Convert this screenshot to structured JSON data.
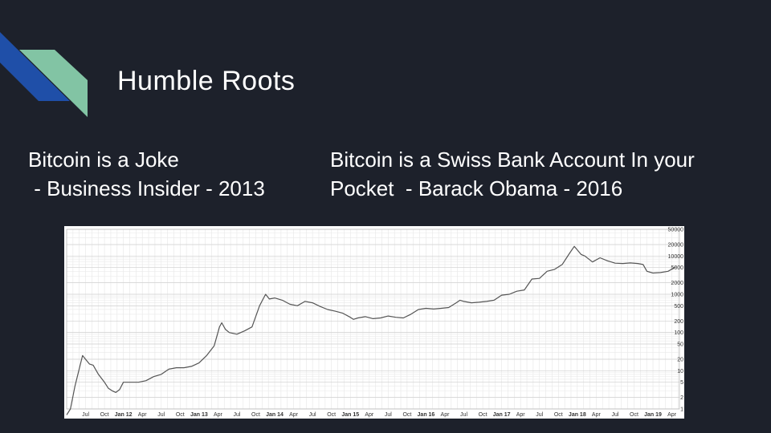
{
  "slide": {
    "title": "Humble Roots",
    "quote_left": "Bitcoin is a Joke\n - Business Insider - 2013",
    "quote_right": "Bitcoin is a Swiss Bank Account In your\nPocket  - Barack Obama - 2016"
  },
  "colors": {
    "background": "#1d212b",
    "accent_blue": "#1f4fa8",
    "accent_green": "#82c4a4",
    "text": "#ffffff",
    "line": "#555555"
  },
  "chart_data": {
    "type": "line",
    "y_scale": "log",
    "ylim": [
      1,
      50000
    ],
    "y_ticks": [
      1,
      2,
      5,
      10,
      20,
      50,
      100,
      200,
      500,
      1000,
      2000,
      5000,
      10000,
      20000,
      50000
    ],
    "y_tick_labels": [
      "1",
      "2",
      "5",
      "10",
      "20",
      "50",
      "100",
      "200",
      "500",
      "1000",
      "2000",
      "5000",
      "10000",
      "20000",
      "50000"
    ],
    "x_range": [
      2011.25,
      2019.35
    ],
    "x_ticks": [
      {
        "x": 2011.5,
        "label": "Jul",
        "bold": false
      },
      {
        "x": 2011.75,
        "label": "Oct",
        "bold": false
      },
      {
        "x": 2012.0,
        "label": "Jan 12",
        "bold": true
      },
      {
        "x": 2012.25,
        "label": "Apr",
        "bold": false
      },
      {
        "x": 2012.5,
        "label": "Jul",
        "bold": false
      },
      {
        "x": 2012.75,
        "label": "Oct",
        "bold": false
      },
      {
        "x": 2013.0,
        "label": "Jan 13",
        "bold": true
      },
      {
        "x": 2013.25,
        "label": "Apr",
        "bold": false
      },
      {
        "x": 2013.5,
        "label": "Jul",
        "bold": false
      },
      {
        "x": 2013.75,
        "label": "Oct",
        "bold": false
      },
      {
        "x": 2014.0,
        "label": "Jan 14",
        "bold": true
      },
      {
        "x": 2014.25,
        "label": "Apr",
        "bold": false
      },
      {
        "x": 2014.5,
        "label": "Jul",
        "bold": false
      },
      {
        "x": 2014.75,
        "label": "Oct",
        "bold": false
      },
      {
        "x": 2015.0,
        "label": "Jan 15",
        "bold": true
      },
      {
        "x": 2015.25,
        "label": "Apr",
        "bold": false
      },
      {
        "x": 2015.5,
        "label": "Jul",
        "bold": false
      },
      {
        "x": 2015.75,
        "label": "Oct",
        "bold": false
      },
      {
        "x": 2016.0,
        "label": "Jan 16",
        "bold": true
      },
      {
        "x": 2016.25,
        "label": "Apr",
        "bold": false
      },
      {
        "x": 2016.5,
        "label": "Jul",
        "bold": false
      },
      {
        "x": 2016.75,
        "label": "Oct",
        "bold": false
      },
      {
        "x": 2017.0,
        "label": "Jan 17",
        "bold": true
      },
      {
        "x": 2017.25,
        "label": "Apr",
        "bold": false
      },
      {
        "x": 2017.5,
        "label": "Jul",
        "bold": false
      },
      {
        "x": 2017.75,
        "label": "Oct",
        "bold": false
      },
      {
        "x": 2018.0,
        "label": "Jan 18",
        "bold": true
      },
      {
        "x": 2018.25,
        "label": "Apr",
        "bold": false
      },
      {
        "x": 2018.5,
        "label": "Jul",
        "bold": false
      },
      {
        "x": 2018.75,
        "label": "Oct",
        "bold": false
      },
      {
        "x": 2019.0,
        "label": "Jan 19",
        "bold": true
      },
      {
        "x": 2019.25,
        "label": "Apr",
        "bold": false
      }
    ],
    "grid": true,
    "series": [
      {
        "x": [
          2011.25,
          2011.3,
          2011.36,
          2011.42,
          2011.46,
          2011.5,
          2011.55,
          2011.6,
          2011.67,
          2011.75,
          2011.8,
          2011.85,
          2011.9,
          2011.95,
          2012.0,
          2012.1,
          2012.2,
          2012.3,
          2012.4,
          2012.5,
          2012.6,
          2012.7,
          2012.8,
          2012.9,
          2013.0,
          2013.1,
          2013.2,
          2013.27,
          2013.3,
          2013.35,
          2013.4,
          2013.5,
          2013.6,
          2013.7,
          2013.8,
          2013.88,
          2013.93,
          2014.0,
          2014.1,
          2014.2,
          2014.3,
          2014.4,
          2014.5,
          2014.6,
          2014.7,
          2014.8,
          2014.9,
          2015.0,
          2015.04,
          2015.1,
          2015.2,
          2015.3,
          2015.4,
          2015.5,
          2015.6,
          2015.7,
          2015.8,
          2015.9,
          2016.0,
          2016.1,
          2016.2,
          2016.3,
          2016.4,
          2016.45,
          2016.5,
          2016.6,
          2016.7,
          2016.8,
          2016.9,
          2017.0,
          2017.1,
          2017.2,
          2017.3,
          2017.4,
          2017.5,
          2017.6,
          2017.7,
          2017.8,
          2017.9,
          2017.96,
          2018.05,
          2018.1,
          2018.2,
          2018.3,
          2018.4,
          2018.5,
          2018.6,
          2018.7,
          2018.8,
          2018.87,
          2018.92,
          2019.0,
          2019.1,
          2019.2,
          2019.3
        ],
        "y": [
          0.7,
          1,
          4,
          12,
          25,
          20,
          15,
          14,
          8,
          5,
          3.5,
          3,
          2.7,
          3.2,
          5,
          5,
          5,
          5.5,
          7,
          8,
          11,
          12,
          12,
          13,
          16,
          25,
          45,
          140,
          180,
          120,
          100,
          90,
          110,
          140,
          500,
          1000,
          750,
          800,
          700,
          550,
          500,
          650,
          600,
          480,
          400,
          360,
          320,
          250,
          220,
          240,
          260,
          230,
          240,
          270,
          250,
          240,
          300,
          400,
          430,
          410,
          430,
          450,
          600,
          700,
          650,
          600,
          620,
          650,
          700,
          950,
          1000,
          1200,
          1300,
          2500,
          2600,
          4000,
          4500,
          6000,
          12000,
          18000,
          11000,
          10000,
          7000,
          9000,
          7500,
          6500,
          6400,
          6600,
          6400,
          6000,
          4000,
          3600,
          3700,
          4000,
          5200
        ]
      }
    ]
  }
}
